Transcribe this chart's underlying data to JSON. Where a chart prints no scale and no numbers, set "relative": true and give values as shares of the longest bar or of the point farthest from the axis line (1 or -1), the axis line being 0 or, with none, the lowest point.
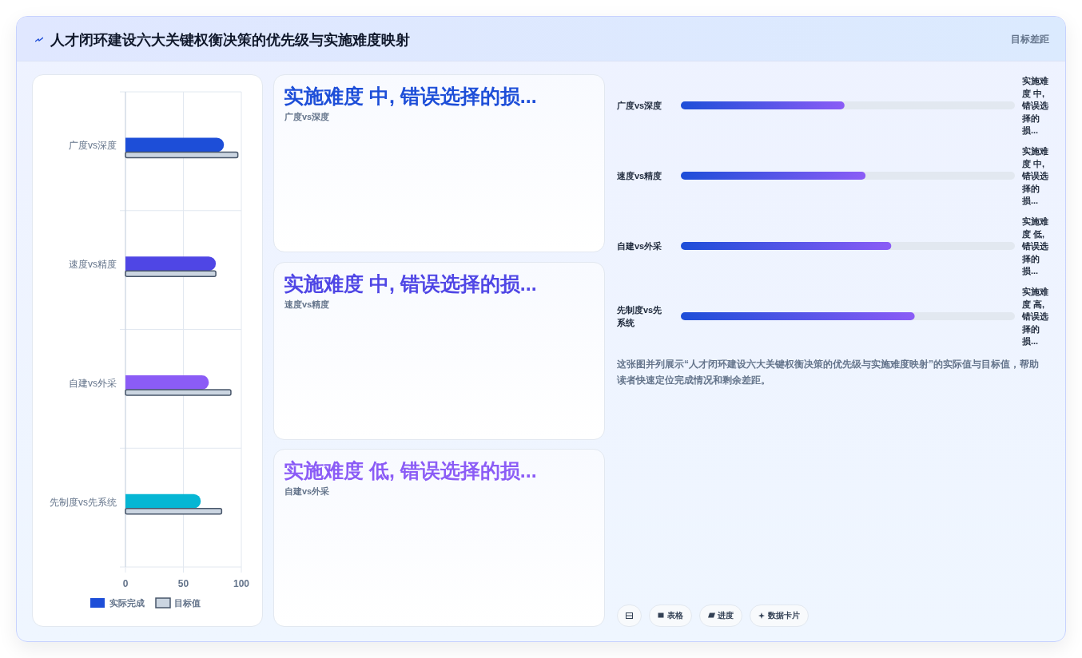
{
  "chart_data": [
    {
      "type": "other",
      "title": "人才闭环建设六大关键权衡决策的优先级与实施难度映射",
      "subtitle": "目标差距"
    },
    {
      "type": "bar",
      "orientation": "horizontal",
      "categories": [
        "广度vs深度",
        "速度vs精度",
        "自建vs外采",
        "先制度vs先系统"
      ],
      "series": [
        {
          "name": "实际完成",
          "colors": [
            "#1d4ed8",
            "#4f46e5",
            "#8b5cf6",
            "#06b6d4"
          ],
          "values": [
            85,
            78,
            72,
            65
          ]
        },
        {
          "name": "目标值",
          "color": "#cbd5e1",
          "values": [
            97,
            78,
            91,
            83
          ]
        }
      ],
      "xlim": [
        0,
        100
      ],
      "xticks": [
        0,
        50,
        100
      ],
      "grid": true,
      "legend": "bottom"
    },
    {
      "type": "other",
      "colors": [
        "#1d4ed8",
        "#4f46e5",
        "#8b5cf6"
      ],
      "annotations": [
        "实施难度 中, 错误选择的损...",
        "广度vs深度",
        "实施难度 中, 错误选择的损...",
        "速度vs精度",
        "实施难度 低, 错误选择的损...",
        "自建vs外采"
      ]
    },
    {
      "type": "bar",
      "orientation": "horizontal",
      "relative": true,
      "categories": [
        "广度vs深度",
        "速度vs精度",
        "自建vs外采",
        "先制度vs先系统"
      ],
      "series": [
        {
          "color": "#8b5cf6",
          "values": [
            0.7,
            0.79,
            0.9,
            1
          ]
        }
      ],
      "value_labels": [
        "实施难度 中, 错误选择的损...",
        "实施难度 中, 错误选择的损...",
        "实施难度 低, 错误选择的损...",
        "实施难度 高, 错误选择的损..."
      ],
      "annotations": [
        "这张图并列展示“人才闭环建设六大关键权衡决策的优先级与实施难度映射”的实际值与目标值，帮助读者快速定位完成情况和剩余差距。",
        "表格",
        "进度",
        "数据卡片"
      ]
    }
  ]
}
